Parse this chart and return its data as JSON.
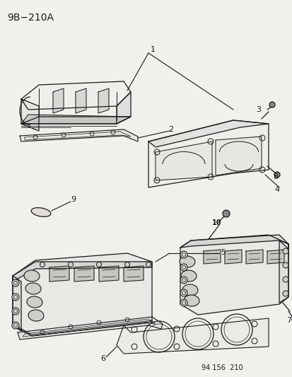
{
  "title_text": "9B−210A",
  "footer_text": "94 156  210",
  "background_color": "#f2f0eb",
  "line_color": "#1a1a1a",
  "title_fontsize": 10,
  "footer_fontsize": 7,
  "label_fontsize": 8
}
